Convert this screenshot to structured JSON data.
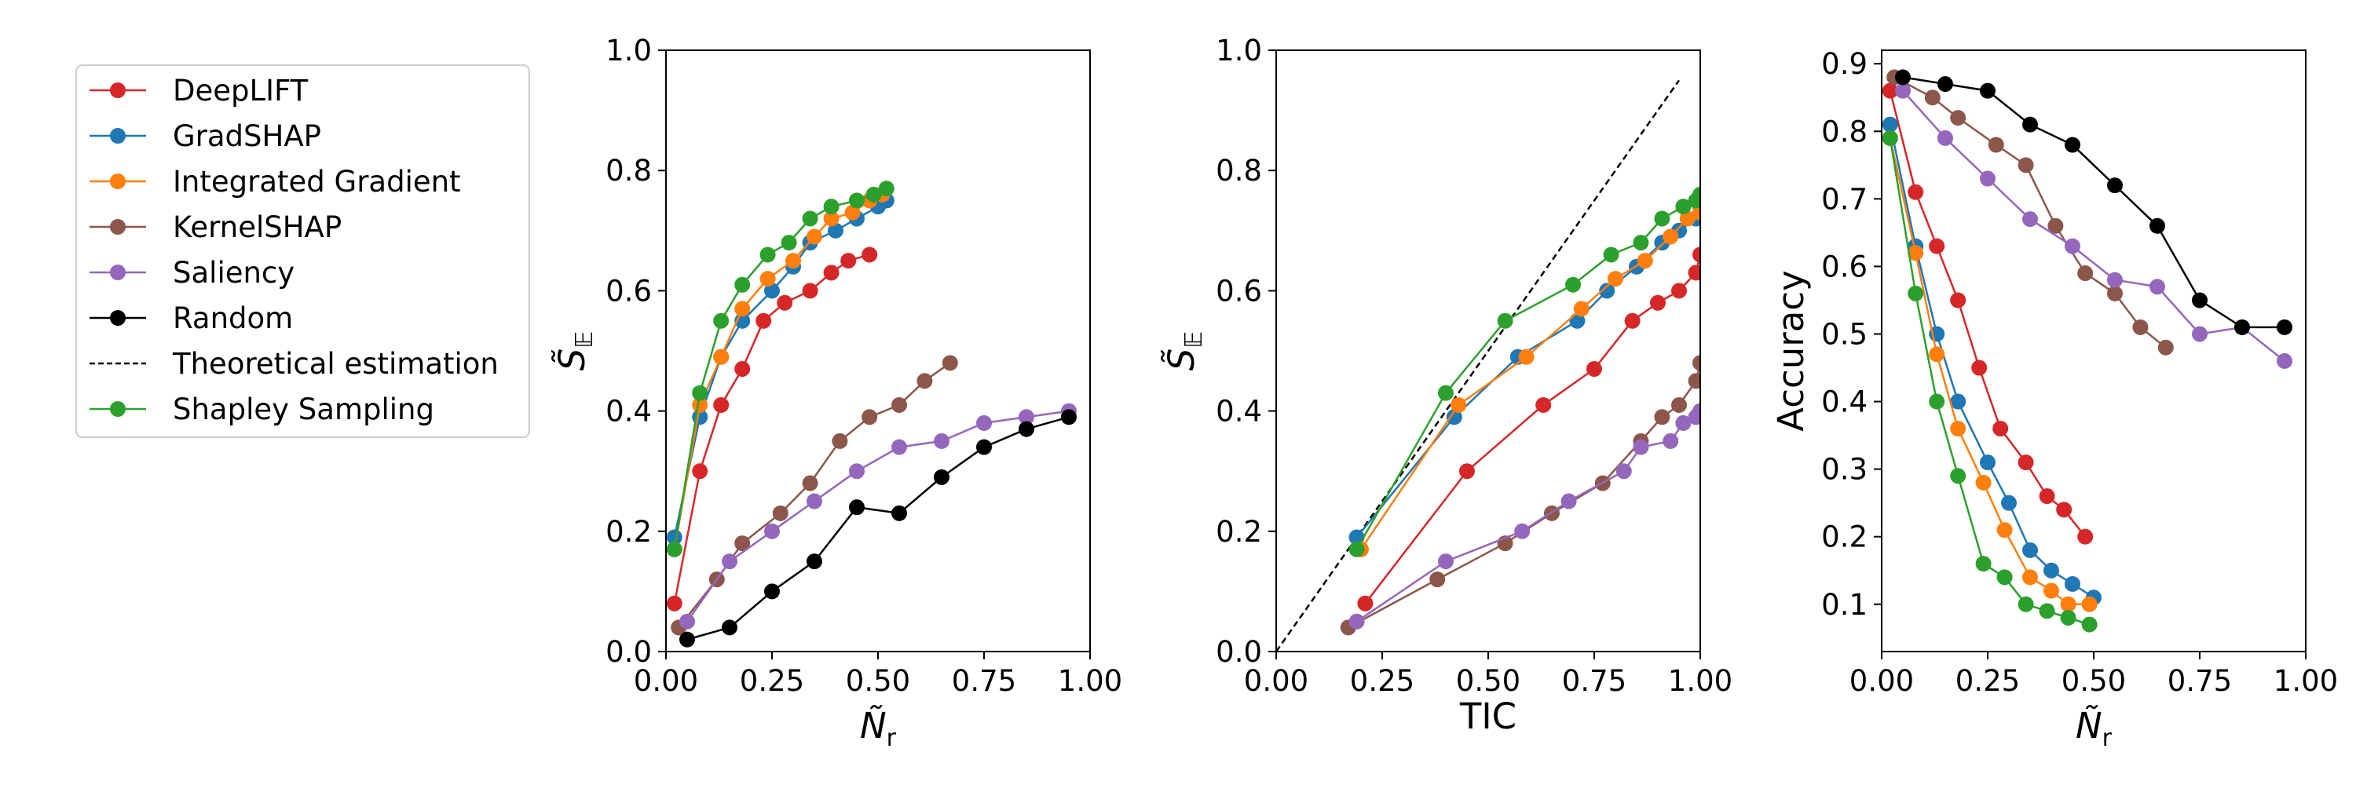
{
  "colors": {
    "DeepLIFT": "#d62728",
    "GradSHAP": "#1f77b4",
    "Integrated Gradient": "#ff7f0e",
    "KernelSHAP": "#8c564b",
    "Saliency": "#9467bd",
    "Random": "#000000",
    "Theoretical estimation": "#000000",
    "Shapley Sampling": "#2ca02c"
  },
  "legend": {
    "entries": [
      {
        "label": "DeepLIFT",
        "style": "marker-line"
      },
      {
        "label": "GradSHAP",
        "style": "marker-line"
      },
      {
        "label": "Integrated Gradient",
        "style": "marker-line"
      },
      {
        "label": "KernelSHAP",
        "style": "marker-line"
      },
      {
        "label": "Saliency",
        "style": "marker-line"
      },
      {
        "label": "Random",
        "style": "marker-line"
      },
      {
        "label": "Theoretical estimation",
        "style": "dashed"
      },
      {
        "label": "Shapley Sampling",
        "style": "marker-line"
      }
    ]
  },
  "chart_data": [
    {
      "type": "line",
      "id": "left",
      "xlabel": "Ñ_r",
      "ylabel": "S̃_𝔼",
      "xlim": [
        0,
        1
      ],
      "ylim": [
        0,
        1
      ],
      "xticks": [
        "0.00",
        "0.25",
        "0.50",
        "0.75",
        "1.00"
      ],
      "yticks": [
        "0.0",
        "0.2",
        "0.4",
        "0.6",
        "0.8",
        "1.0"
      ],
      "series": [
        {
          "name": "DeepLIFT",
          "x": [
            0.02,
            0.08,
            0.13,
            0.18,
            0.23,
            0.28,
            0.34,
            0.39,
            0.43,
            0.48
          ],
          "y": [
            0.08,
            0.3,
            0.41,
            0.47,
            0.55,
            0.58,
            0.6,
            0.63,
            0.65,
            0.66
          ]
        },
        {
          "name": "GradSHAP",
          "x": [
            0.02,
            0.08,
            0.13,
            0.18,
            0.25,
            0.3,
            0.34,
            0.4,
            0.45,
            0.5,
            0.52
          ],
          "y": [
            0.19,
            0.39,
            0.49,
            0.55,
            0.6,
            0.64,
            0.68,
            0.7,
            0.72,
            0.74,
            0.75
          ]
        },
        {
          "name": "Integrated Gradient",
          "x": [
            0.02,
            0.08,
            0.13,
            0.18,
            0.24,
            0.3,
            0.35,
            0.39,
            0.44,
            0.48,
            0.51
          ],
          "y": [
            0.17,
            0.41,
            0.49,
            0.57,
            0.62,
            0.65,
            0.69,
            0.72,
            0.73,
            0.75,
            0.76
          ]
        },
        {
          "name": "KernelSHAP",
          "x": [
            0.03,
            0.12,
            0.18,
            0.27,
            0.34,
            0.41,
            0.48,
            0.55,
            0.61,
            0.67
          ],
          "y": [
            0.04,
            0.12,
            0.18,
            0.23,
            0.28,
            0.35,
            0.39,
            0.41,
            0.45,
            0.48
          ]
        },
        {
          "name": "Saliency",
          "x": [
            0.05,
            0.15,
            0.25,
            0.35,
            0.45,
            0.55,
            0.65,
            0.75,
            0.85,
            0.95
          ],
          "y": [
            0.05,
            0.15,
            0.2,
            0.25,
            0.3,
            0.34,
            0.35,
            0.38,
            0.39,
            0.4
          ]
        },
        {
          "name": "Random",
          "x": [
            0.05,
            0.15,
            0.25,
            0.35,
            0.45,
            0.55,
            0.65,
            0.75,
            0.85,
            0.95
          ],
          "y": [
            0.02,
            0.04,
            0.1,
            0.15,
            0.24,
            0.23,
            0.29,
            0.34,
            0.37,
            0.39
          ]
        },
        {
          "name": "Shapley Sampling",
          "x": [
            0.02,
            0.08,
            0.13,
            0.18,
            0.24,
            0.29,
            0.34,
            0.39,
            0.45,
            0.49,
            0.52
          ],
          "y": [
            0.17,
            0.43,
            0.55,
            0.61,
            0.66,
            0.68,
            0.72,
            0.74,
            0.75,
            0.76,
            0.77
          ]
        }
      ]
    },
    {
      "type": "line",
      "id": "middle",
      "xlabel": "TIC",
      "ylabel": "S̃_𝔼",
      "xlim": [
        0,
        1
      ],
      "ylim": [
        0,
        1
      ],
      "xticks": [
        "0.00",
        "0.25",
        "0.50",
        "0.75",
        "1.00"
      ],
      "yticks": [
        "0.0",
        "0.2",
        "0.4",
        "0.6",
        "0.8",
        "1.0"
      ],
      "series": [
        {
          "name": "Theoretical estimation",
          "x": [
            0.0,
            0.95
          ],
          "y": [
            0.0,
            0.95
          ],
          "dashed": true
        },
        {
          "name": "DeepLIFT",
          "x": [
            0.21,
            0.45,
            0.63,
            0.75,
            0.84,
            0.9,
            0.95,
            0.99,
            1.0
          ],
          "y": [
            0.08,
            0.3,
            0.41,
            0.47,
            0.55,
            0.58,
            0.6,
            0.63,
            0.66
          ]
        },
        {
          "name": "GradSHAP",
          "x": [
            0.19,
            0.42,
            0.57,
            0.71,
            0.78,
            0.85,
            0.91,
            0.95,
            0.99,
            1.0
          ],
          "y": [
            0.19,
            0.39,
            0.49,
            0.55,
            0.6,
            0.64,
            0.68,
            0.7,
            0.72,
            0.74
          ]
        },
        {
          "name": "Integrated Gradient",
          "x": [
            0.2,
            0.43,
            0.59,
            0.72,
            0.8,
            0.87,
            0.93,
            0.97,
            1.0
          ],
          "y": [
            0.17,
            0.41,
            0.49,
            0.57,
            0.62,
            0.65,
            0.69,
            0.72,
            0.73
          ]
        },
        {
          "name": "KernelSHAP",
          "x": [
            0.17,
            0.38,
            0.54,
            0.65,
            0.77,
            0.86,
            0.91,
            0.95,
            0.99,
            1.0
          ],
          "y": [
            0.04,
            0.12,
            0.18,
            0.23,
            0.28,
            0.35,
            0.39,
            0.41,
            0.45,
            0.48
          ]
        },
        {
          "name": "Saliency",
          "x": [
            0.19,
            0.4,
            0.58,
            0.69,
            0.82,
            0.86,
            0.93,
            0.96,
            0.99,
            1.0
          ],
          "y": [
            0.05,
            0.15,
            0.2,
            0.25,
            0.3,
            0.34,
            0.35,
            0.38,
            0.39,
            0.4
          ]
        },
        {
          "name": "Shapley Sampling",
          "x": [
            0.19,
            0.4,
            0.54,
            0.7,
            0.79,
            0.86,
            0.91,
            0.96,
            0.99,
            1.0
          ],
          "y": [
            0.17,
            0.43,
            0.55,
            0.61,
            0.66,
            0.68,
            0.72,
            0.74,
            0.75,
            0.76
          ]
        }
      ]
    },
    {
      "type": "line",
      "id": "right",
      "xlabel": "Ñ_r",
      "ylabel": "Accuracy",
      "xlim": [
        0,
        1
      ],
      "ylim": [
        0.03,
        0.92
      ],
      "xticks": [
        "0.00",
        "0.25",
        "0.50",
        "0.75",
        "1.00"
      ],
      "yticks": [
        "0.1",
        "0.2",
        "0.3",
        "0.4",
        "0.5",
        "0.6",
        "0.7",
        "0.8",
        "0.9"
      ],
      "series": [
        {
          "name": "DeepLIFT",
          "x": [
            0.02,
            0.08,
            0.13,
            0.18,
            0.23,
            0.28,
            0.34,
            0.39,
            0.43,
            0.48
          ],
          "y": [
            0.86,
            0.71,
            0.63,
            0.55,
            0.45,
            0.36,
            0.31,
            0.26,
            0.24,
            0.2
          ]
        },
        {
          "name": "GradSHAP",
          "x": [
            0.02,
            0.08,
            0.13,
            0.18,
            0.25,
            0.3,
            0.35,
            0.4,
            0.45,
            0.5
          ],
          "y": [
            0.81,
            0.63,
            0.5,
            0.4,
            0.31,
            0.25,
            0.18,
            0.15,
            0.13,
            0.11
          ]
        },
        {
          "name": "Integrated Gradient",
          "x": [
            0.02,
            0.08,
            0.13,
            0.18,
            0.24,
            0.29,
            0.35,
            0.4,
            0.44,
            0.49
          ],
          "y": [
            0.79,
            0.62,
            0.47,
            0.36,
            0.28,
            0.21,
            0.14,
            0.12,
            0.1,
            0.1
          ]
        },
        {
          "name": "KernelSHAP",
          "x": [
            0.03,
            0.12,
            0.18,
            0.27,
            0.34,
            0.41,
            0.48,
            0.55,
            0.61,
            0.67
          ],
          "y": [
            0.88,
            0.85,
            0.82,
            0.78,
            0.75,
            0.66,
            0.59,
            0.56,
            0.51,
            0.48
          ]
        },
        {
          "name": "Saliency",
          "x": [
            0.05,
            0.15,
            0.25,
            0.35,
            0.45,
            0.55,
            0.65,
            0.75,
            0.85,
            0.95
          ],
          "y": [
            0.86,
            0.79,
            0.73,
            0.67,
            0.63,
            0.58,
            0.57,
            0.5,
            0.51,
            0.46
          ]
        },
        {
          "name": "Random",
          "x": [
            0.05,
            0.15,
            0.25,
            0.35,
            0.45,
            0.55,
            0.65,
            0.75,
            0.85,
            0.95
          ],
          "y": [
            0.88,
            0.87,
            0.86,
            0.81,
            0.78,
            0.72,
            0.66,
            0.55,
            0.51,
            0.51
          ]
        },
        {
          "name": "Shapley Sampling",
          "x": [
            0.02,
            0.08,
            0.13,
            0.18,
            0.24,
            0.29,
            0.34,
            0.39,
            0.44,
            0.49
          ],
          "y": [
            0.79,
            0.56,
            0.4,
            0.29,
            0.16,
            0.14,
            0.1,
            0.09,
            0.08,
            0.07
          ]
        }
      ]
    }
  ]
}
